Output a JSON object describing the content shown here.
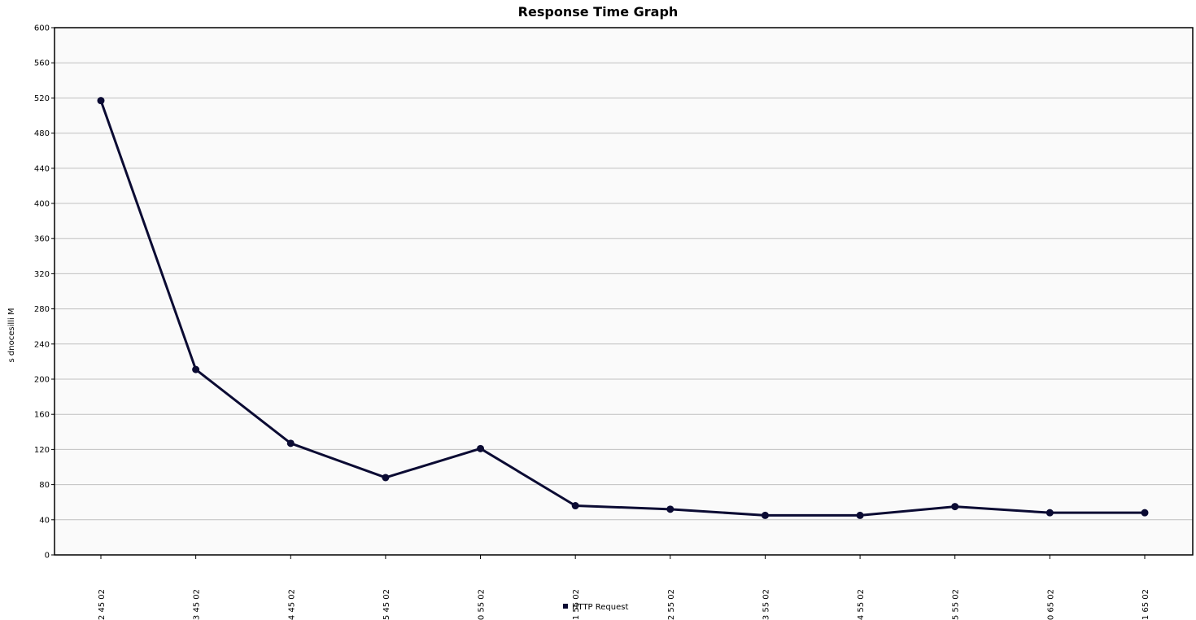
{
  "chart_data": {
    "type": "line",
    "title": "Response Time Graph",
    "ylabel": "s dnocesilli M",
    "xlabel": "",
    "ylim": [
      0,
      600
    ],
    "yticks": [
      0,
      40,
      80,
      120,
      160,
      200,
      240,
      280,
      320,
      360,
      400,
      440,
      480,
      520,
      560,
      600
    ],
    "x": [
      "2 45 02",
      "3 45 02",
      "4 45 02",
      "5 45 02",
      "0 55 02",
      "1 55 02",
      "2 55 02",
      "3 55 02",
      "4 55 02",
      "5 55 02",
      "0 65 02",
      "1 65 02"
    ],
    "series": [
      {
        "name": "HTTP Request",
        "values": [
          517,
          211,
          127,
          88,
          121,
          56,
          52,
          45,
          45,
          55,
          48,
          48
        ]
      }
    ],
    "grid": true,
    "legend_position": "bottom-center",
    "colors": {
      "series": "#0b0b33",
      "plot_background": "#fafafa",
      "grid": "#c0c0c0",
      "frame": "#000000"
    }
  }
}
